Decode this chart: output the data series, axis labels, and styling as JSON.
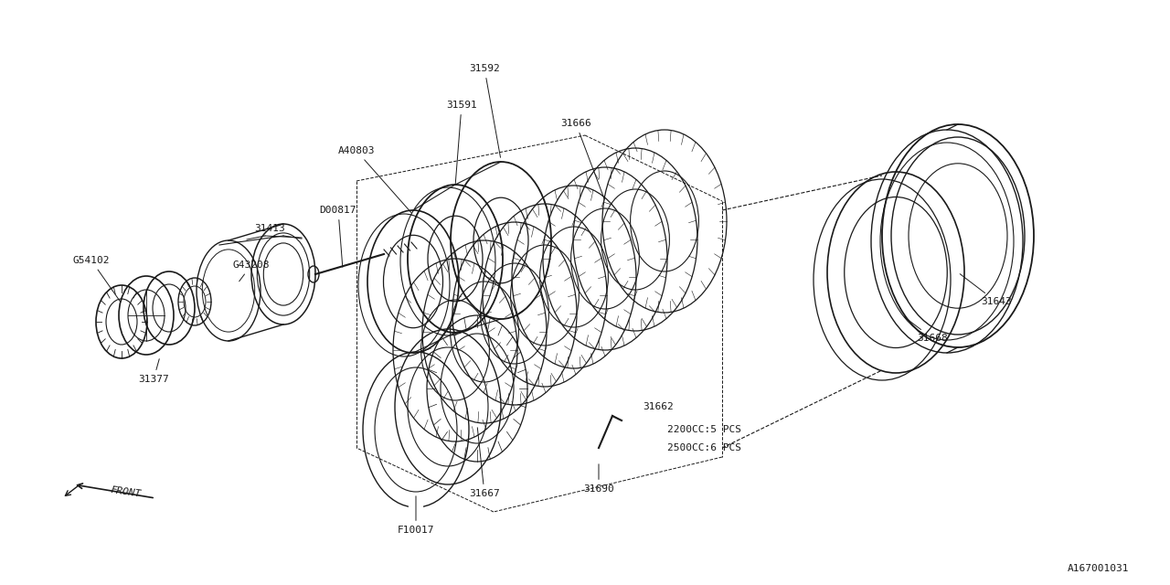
{
  "bg_color": "#ffffff",
  "line_color": "#1a1a1a",
  "fig_width": 12.8,
  "fig_height": 6.4,
  "dpi": 100,
  "diagram_id": "A167001031",
  "annotation_2200cc": "2200CC:5 PCS",
  "annotation_2500cc": "2500CC:6 PCS"
}
